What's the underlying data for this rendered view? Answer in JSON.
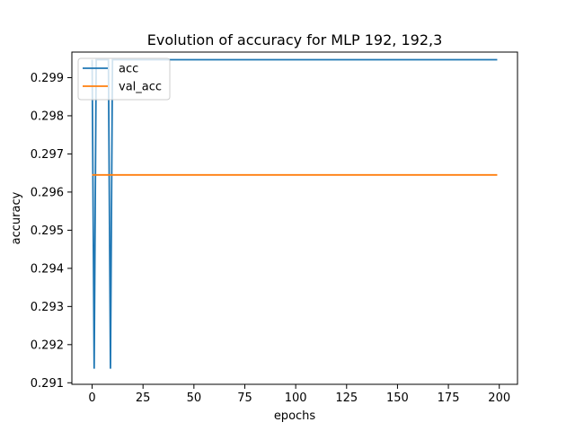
{
  "chart_data": {
    "type": "line",
    "title": "Evolution of accuracy for MLP 192, 192,3",
    "xlabel": "epochs",
    "ylabel": "accuracy",
    "xlim": [
      -9.95,
      208.95
    ],
    "ylim": [
      0.29096,
      0.29967
    ],
    "xticks": [
      0,
      25,
      50,
      75,
      100,
      125,
      150,
      175,
      200
    ],
    "yticks": [
      0.291,
      0.292,
      0.293,
      0.294,
      0.295,
      0.296,
      0.297,
      0.298,
      0.299
    ],
    "legend_position": "upper-left",
    "grid": false,
    "series": [
      {
        "name": "acc",
        "color": "#1f77b4",
        "points": [
          [
            0,
            0.29947
          ],
          [
            1,
            0.29137
          ],
          [
            2,
            0.29947
          ],
          [
            8,
            0.29947
          ],
          [
            9,
            0.29137
          ],
          [
            10,
            0.29947
          ],
          [
            199,
            0.29947
          ]
        ]
      },
      {
        "name": "val_acc",
        "color": "#ff7f0e",
        "points": [
          [
            0,
            0.29645
          ],
          [
            199,
            0.29645
          ]
        ]
      }
    ]
  }
}
